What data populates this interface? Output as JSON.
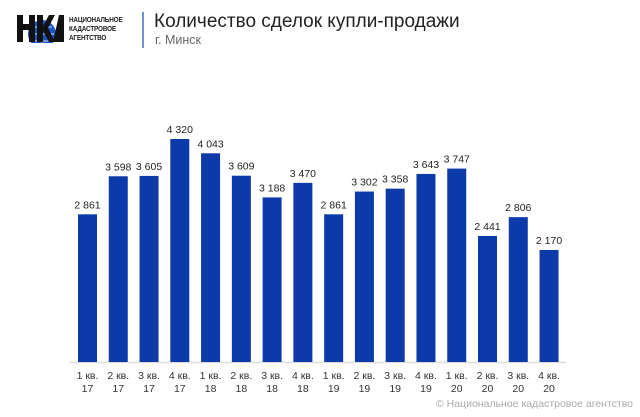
{
  "header": {
    "logo_text": [
      "НАЦИОНАЛЬНОЕ",
      "КАДАСТРОВОЕ",
      "АГЕНТСТВО"
    ],
    "title": "Количество сделок купли-продажи",
    "subtitle": "г. Минск"
  },
  "footer": "© Национальное кадастровое агентство",
  "colors": {
    "bar": "#0d3aa9",
    "axis": "#dddddd"
  },
  "chart_data": {
    "type": "bar",
    "title": "Количество сделок купли-продажи",
    "subtitle": "г. Минск",
    "categories": [
      [
        "1 кв.",
        "17"
      ],
      [
        "2 кв.",
        "17"
      ],
      [
        "3 кв.",
        "17"
      ],
      [
        "4 кв.",
        "17"
      ],
      [
        "1 кв.",
        "18"
      ],
      [
        "2 кв.",
        "18"
      ],
      [
        "3 кв.",
        "18"
      ],
      [
        "4 кв.",
        "18"
      ],
      [
        "1 кв.",
        "19"
      ],
      [
        "2 кв.",
        "19"
      ],
      [
        "3 кв.",
        "19"
      ],
      [
        "4 кв.",
        "19"
      ],
      [
        "1 кв.",
        "20"
      ],
      [
        "2 кв.",
        "20"
      ],
      [
        "3 кв.",
        "20"
      ],
      [
        "4 кв.",
        "20"
      ]
    ],
    "values": [
      2861,
      3598,
      3605,
      4320,
      4043,
      3609,
      3188,
      3470,
      2861,
      3302,
      3358,
      3643,
      3747,
      2441,
      2806,
      2170
    ],
    "value_labels": [
      "2 861",
      "3 598",
      "3 605",
      "4 320",
      "4 043",
      "3 609",
      "3 188",
      "3 470",
      "2 861",
      "3 302",
      "3 358",
      "3 643",
      "3 747",
      "2 441",
      "2 806",
      "2 170"
    ],
    "xlabel": "",
    "ylabel": "",
    "ylim": [
      0,
      4320
    ],
    "grid": false,
    "legend": "none"
  }
}
